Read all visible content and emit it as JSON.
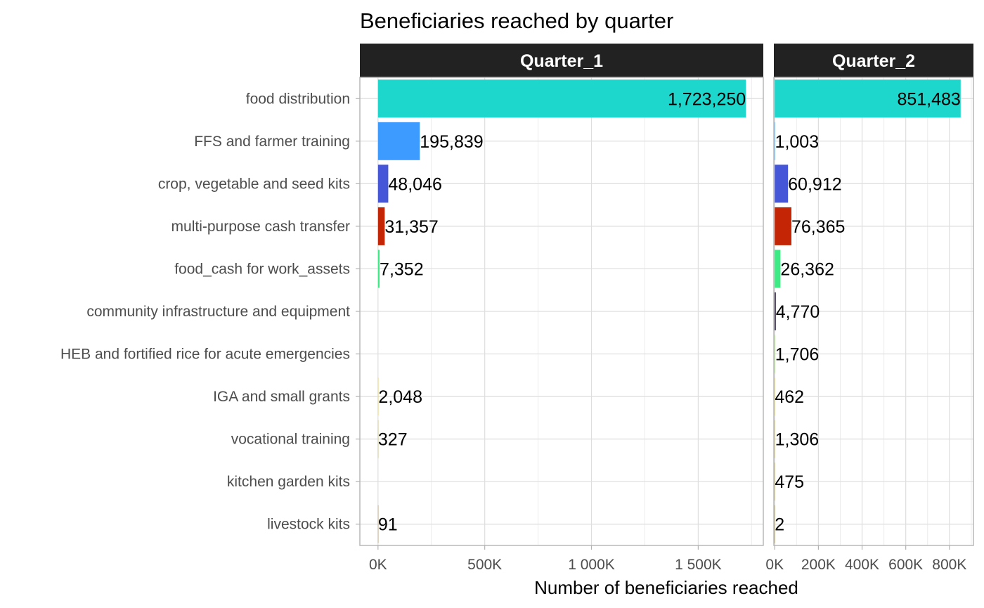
{
  "chart_data": {
    "type": "bar",
    "orientation": "horizontal",
    "title": "Beneficiaries reached by quarter",
    "xlabel": "Number of beneficiaries reached",
    "ylabel": "",
    "grid": true,
    "categories": [
      "food distribution",
      "FFS and farmer training",
      "crop, vegetable and seed kits",
      "multi-purpose cash transfer",
      "food_cash for work_assets",
      "community infrastructure and equipment",
      "HEB and fortified rice for acute emergencies",
      "IGA and small grants",
      "vocational training",
      "kitchen garden kits",
      "livestock kits"
    ],
    "category_colors": [
      "#1DD6CC",
      "#3D9BFF",
      "#4556D8",
      "#C42504",
      "#3DEB85",
      "#1A1030",
      "#A6E07A",
      "#E3D070",
      "#C8B868",
      "#B8A460",
      "#A08A50"
    ],
    "panels": [
      {
        "name": "Quarter_1",
        "xlim": [
          -85000,
          1805000
        ],
        "ticks": [
          0,
          500000,
          1000000,
          1500000
        ],
        "tick_labels": [
          "0K",
          "500K",
          "1 000K",
          "1 500K"
        ],
        "values": [
          1723250,
          195839,
          48046,
          31357,
          7352,
          null,
          null,
          2048,
          327,
          null,
          91
        ],
        "labels": [
          "1,723,250",
          "195,839",
          "48,046",
          "31,357",
          "7,352",
          "",
          "",
          "2,048",
          "327",
          "",
          "91"
        ]
      },
      {
        "name": "Quarter_2",
        "xlim": [
          -4000,
          910000
        ],
        "ticks": [
          0,
          200000,
          400000,
          600000,
          800000
        ],
        "tick_labels": [
          "0K",
          "200K",
          "400K",
          "600K",
          "800K"
        ],
        "values": [
          851483,
          1003,
          60912,
          76365,
          26362,
          4770,
          1706,
          462,
          1306,
          475,
          2
        ],
        "labels": [
          "851,483",
          "1,003",
          "60,912",
          "76,365",
          "26,362",
          "4,770",
          "1,706",
          "462",
          "1,306",
          "475",
          "2"
        ]
      }
    ]
  }
}
